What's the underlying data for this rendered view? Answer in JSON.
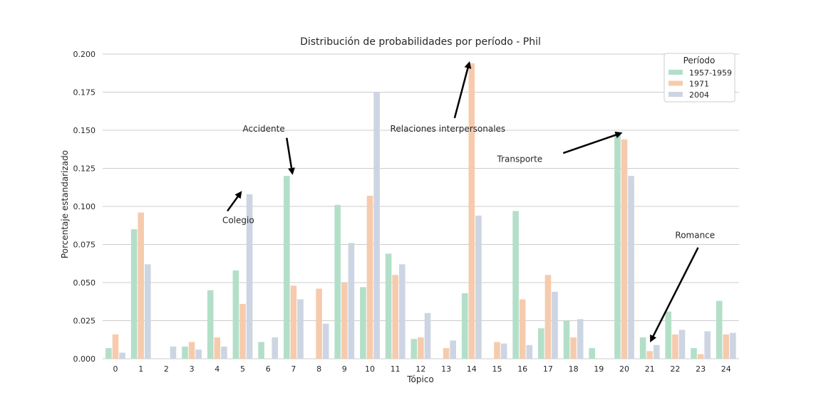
{
  "chart_data": {
    "type": "bar",
    "title": "Distribución de probabilidades por período - Phil",
    "xlabel": "Tópico",
    "ylabel": "Porcentaje estandarizado",
    "ylim": [
      0,
      0.2
    ],
    "yticks": [
      "0.000",
      "0.025",
      "0.050",
      "0.075",
      "0.100",
      "0.125",
      "0.150",
      "0.175",
      "0.200"
    ],
    "grid": "horizontal",
    "categories": [
      "0",
      "1",
      "2",
      "3",
      "4",
      "5",
      "6",
      "7",
      "8",
      "9",
      "10",
      "11",
      "12",
      "13",
      "14",
      "15",
      "16",
      "17",
      "18",
      "19",
      "20",
      "21",
      "22",
      "23",
      "24"
    ],
    "legend": {
      "title": "Período",
      "placement": "top-right"
    },
    "series": [
      {
        "name": "1957-1959",
        "color": "#b3dfc9",
        "values": [
          0.007,
          0.085,
          0,
          0.008,
          0.045,
          0.058,
          0.011,
          0.12,
          0,
          0.101,
          0.047,
          0.069,
          0.013,
          0,
          0.043,
          0,
          0.097,
          0.02,
          0.025,
          0.007,
          0.148,
          0.014,
          0.031,
          0.007,
          0.038
        ]
      },
      {
        "name": "1971",
        "color": "#f6cbad",
        "values": [
          0.016,
          0.096,
          0,
          0.011,
          0.014,
          0.036,
          0,
          0.048,
          0.046,
          0.05,
          0.107,
          0.055,
          0.014,
          0.007,
          0.194,
          0.011,
          0.039,
          0.055,
          0.014,
          0,
          0.144,
          0.005,
          0.016,
          0.003,
          0.016
        ]
      },
      {
        "name": "2004",
        "color": "#cdd5e3",
        "values": [
          0.004,
          0.062,
          0.008,
          0.006,
          0.008,
          0.108,
          0.014,
          0.039,
          0.023,
          0.076,
          0.175,
          0.062,
          0.03,
          0.012,
          0.094,
          0.01,
          0.009,
          0.044,
          0.026,
          0,
          0.12,
          0.009,
          0.019,
          0.018,
          0.017
        ]
      }
    ],
    "annotations": [
      {
        "text": "Colegio",
        "label_x": 4.2,
        "label_y": 0.091,
        "tail_x": 4.4,
        "tail_y": 0.097,
        "point_x": 4.92,
        "point_y": 0.109
      },
      {
        "text": "Accidente",
        "label_x": 5.0,
        "label_y": 0.151,
        "tail_x": 6.73,
        "tail_y": 0.145,
        "point_x": 6.95,
        "point_y": 0.122
      },
      {
        "text": "Relaciones interpersonales",
        "label_x": 10.8,
        "label_y": 0.151,
        "tail_x": 13.33,
        "tail_y": 0.158,
        "point_x": 13.9,
        "point_y": 0.194
      },
      {
        "text": "Transporte",
        "label_x": 15.0,
        "label_y": 0.131,
        "tail_x": 17.6,
        "tail_y": 0.135,
        "point_x": 19.85,
        "point_y": 0.148
      },
      {
        "text": "Romance",
        "label_x": 22.0,
        "label_y": 0.081,
        "tail_x": 22.9,
        "tail_y": 0.073,
        "point_x": 21.05,
        "point_y": 0.012
      }
    ]
  }
}
